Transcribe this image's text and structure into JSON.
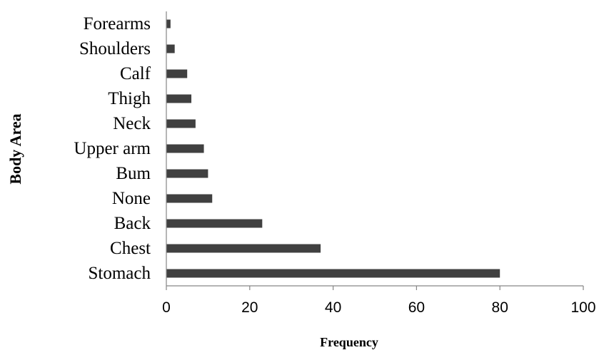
{
  "chart_data": {
    "type": "bar",
    "orientation": "horizontal",
    "categories": [
      "Stomach",
      "Chest",
      "Back",
      "None",
      "Bum",
      "Upper arm",
      "Neck",
      "Thigh",
      "Calf",
      "Shoulders",
      "Forearms"
    ],
    "values": [
      80,
      37,
      23,
      11,
      10,
      9,
      7,
      6,
      5,
      2,
      1
    ],
    "xlabel": "Frequency",
    "ylabel": "Body Area",
    "xlim": [
      0,
      100
    ],
    "xticks": [
      "0",
      "20",
      "40",
      "60",
      "80",
      "100"
    ],
    "grid": false,
    "legend": "none",
    "bar_color": "#404040"
  }
}
